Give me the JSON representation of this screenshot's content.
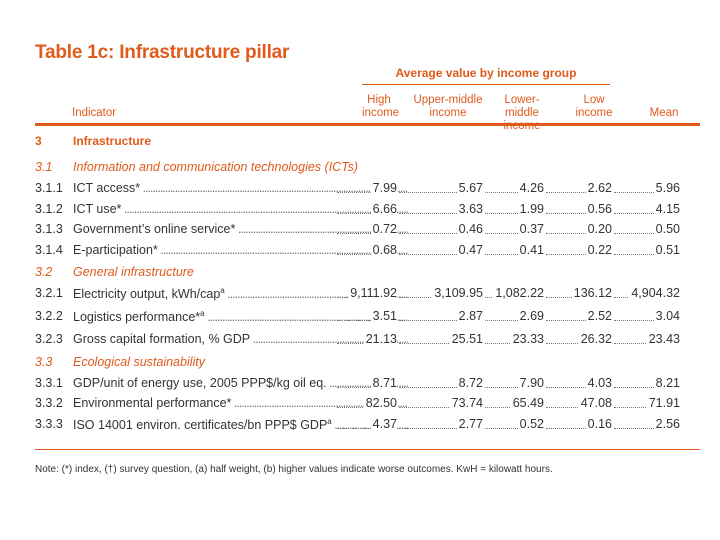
{
  "title": "Table 1c: Infrastructure pillar",
  "group_header": "Average value by income group",
  "columns": {
    "indicator": "Indicator",
    "high": [
      "High",
      "income"
    ],
    "upper_middle": [
      "Upper-middle",
      "income"
    ],
    "lower_middle": [
      "Lower-middle",
      "income"
    ],
    "low": [
      "Low",
      "income"
    ],
    "mean": "Mean"
  },
  "pillar": {
    "num": "3",
    "label": "Infrastructure"
  },
  "sections": [
    {
      "num": "3.1",
      "label": "Information and communication technologies (ICTs)",
      "rows": [
        {
          "num": "3.1.1",
          "label": "ICT access*",
          "sup": "",
          "values": [
            "7.99",
            "5.67",
            "4.26",
            "2.62",
            "5.96"
          ]
        },
        {
          "num": "3.1.2",
          "label": "ICT use*",
          "sup": "",
          "values": [
            "6.66",
            "3.63",
            "1.99",
            "0.56",
            "4.15"
          ]
        },
        {
          "num": "3.1.3",
          "label": "Government’s online service*",
          "sup": "",
          "values": [
            "0.72",
            "0.46",
            "0.37",
            "0.20",
            "0.50"
          ]
        },
        {
          "num": "3.1.4",
          "label": "E-participation*",
          "sup": "",
          "values": [
            "0.68",
            "0.47",
            "0.41",
            "0.22",
            "0.51"
          ]
        }
      ]
    },
    {
      "num": "3.2",
      "label": "General infrastructure",
      "rows": [
        {
          "num": "3.2.1",
          "label": "Electricity output, kWh/cap",
          "sup": "a",
          "values": [
            "9,111.92",
            "3,109.95",
            "1,082.22",
            "136.12",
            "4,904.32"
          ]
        },
        {
          "num": "3.2.2",
          "label": "Logistics performance*",
          "sup": "a",
          "values": [
            "3.51",
            "2.87",
            "2.69",
            "2.52",
            "3.04"
          ]
        },
        {
          "num": "3.2.3",
          "label": "Gross capital formation, % GDP",
          "sup": "",
          "values": [
            "21.13",
            "25.51",
            "23.33",
            "26.32",
            "23.43"
          ]
        }
      ]
    },
    {
      "num": "3.3",
      "label": "Ecological sustainability",
      "rows": [
        {
          "num": "3.3.1",
          "label": "GDP/unit of energy use, 2005 PPP$/kg oil eq.",
          "sup": "",
          "values": [
            "8.71",
            "8.72",
            "7.90",
            "4.03",
            "8.21"
          ]
        },
        {
          "num": "3.3.2",
          "label": "Environmental performance*",
          "sup": "",
          "values": [
            "82.50",
            "73.74",
            "65.49",
            "47.08",
            "71.91"
          ]
        },
        {
          "num": "3.3.3",
          "label": "ISO 14001 environ. certificates/bn PPP$ GDP",
          "sup": "a",
          "values": [
            "4.37",
            "2.77",
            "0.52",
            "0.16",
            "2.56"
          ]
        }
      ]
    }
  ],
  "note": "Note: (*) index, (†) survey question, (a) half weight, (b) higher values indicate worse outcomes. KwH = kilowatt hours."
}
